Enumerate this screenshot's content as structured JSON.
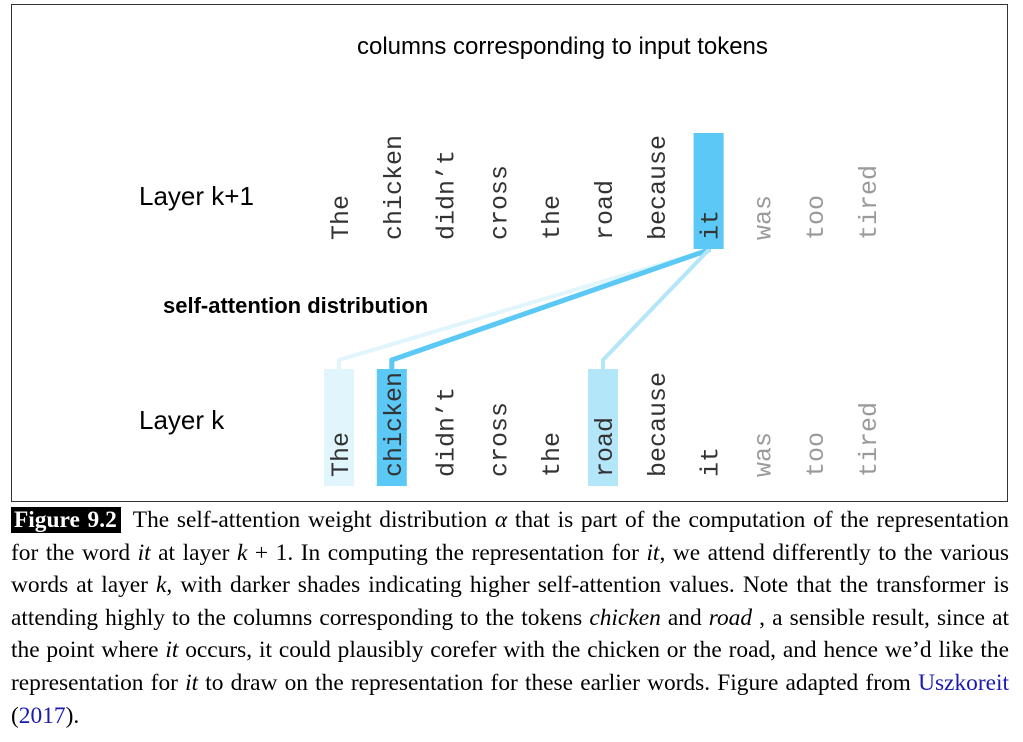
{
  "diagram": {
    "header": "columns corresponding to input tokens",
    "layer_top_label": "Layer k+1",
    "layer_bottom_label": "Layer k",
    "attention_label": "self-attention distribution",
    "tokens": [
      "The",
      "chicken",
      "didn’t",
      "cross",
      "the",
      "road",
      "because",
      "it",
      "was",
      "too",
      "tired"
    ],
    "query_token_index": 7,
    "attention_weights": [
      0.2,
      1.0,
      0,
      0,
      0,
      0.5,
      0,
      0,
      0,
      0,
      0
    ],
    "colors": {
      "query_highlight": "#5bc8f5",
      "attention_strong": "#5bc8f5",
      "attention_medium": "#b3e6f8",
      "attention_weak": "#e0f5fc",
      "token_text": "#333333",
      "faded_token_text": "#9a9a9a"
    }
  },
  "caption": {
    "figure_label": "Figure 9.2",
    "parts": {
      "p1": "The self-attention weight distribution ",
      "alpha": "α",
      "p2": " that is part of the computation of the representation for the word ",
      "it1": "it",
      "p3": " at layer ",
      "k1": "k",
      "p4": " + 1. In computing the representation for ",
      "it2": "it",
      "p5": ", we attend differently to the various words at layer ",
      "k2": "k",
      "p6": ", with darker shades indicating higher self-attention values.  Note that the transformer is attending highly to the columns corresponding to the tokens ",
      "chicken": "chicken",
      "p7": " and ",
      "road": "road",
      "p8": " , a sensible result, since at the point where ",
      "it3": "it",
      "p9": " occurs, it could plausibly corefer with the chicken or the road, and hence we’d like the representation for ",
      "it4": "it",
      "p10": " to draw on the representation for these earlier words. Figure adapted from ",
      "ref_author": "Uszkoreit",
      "ref_open": " (",
      "ref_year": "2017",
      "ref_close": ")."
    }
  }
}
